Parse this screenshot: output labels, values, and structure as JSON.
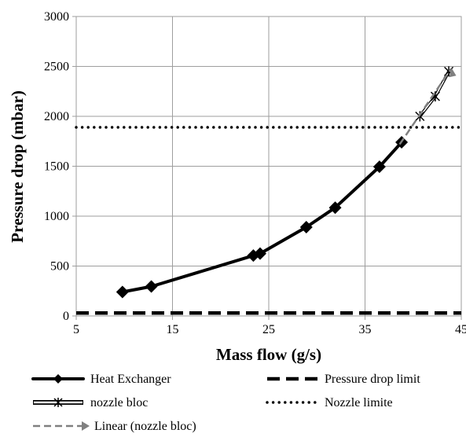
{
  "chart_data": {
    "type": "line",
    "title": "",
    "xlabel": "Mass flow (g/s)",
    "ylabel": "Pressure drop (mbar)",
    "xlim": [
      5,
      45
    ],
    "ylim": [
      0,
      3000
    ],
    "x_ticks": [
      5,
      15,
      25,
      35,
      45
    ],
    "y_ticks": [
      0,
      500,
      1000,
      1500,
      2000,
      2500,
      3000
    ],
    "grid": true,
    "legend_position": "bottom",
    "series": [
      {
        "name": "Heat Exchanger",
        "color": "#000000",
        "marker": "diamond",
        "points": [
          [
            9.8,
            240
          ],
          [
            12.8,
            295
          ],
          [
            23.4,
            605
          ],
          [
            24.1,
            625
          ],
          [
            28.9,
            890
          ],
          [
            31.9,
            1085
          ],
          [
            36.5,
            1495
          ],
          [
            38.8,
            1740
          ]
        ]
      },
      {
        "name": "nozzle bloc",
        "color": "#000000",
        "marker": "star",
        "points": [
          [
            40.7,
            2000
          ],
          [
            42.3,
            2200
          ],
          [
            43.7,
            2450
          ]
        ]
      },
      {
        "name": "Linear (nozzle bloc)",
        "color": "#808080",
        "line_style": "dashed",
        "points": [
          [
            38.6,
            1720
          ],
          [
            43.9,
            2470
          ]
        ]
      },
      {
        "name": "Pressure drop limit",
        "color": "#000000",
        "line_style": "long-dash",
        "points": [
          [
            5,
            30
          ],
          [
            45,
            30
          ]
        ]
      },
      {
        "name": "Nozzle limite",
        "color": "#000000",
        "line_style": "dotted",
        "points": [
          [
            5,
            1890
          ],
          [
            45,
            1890
          ]
        ]
      }
    ]
  }
}
